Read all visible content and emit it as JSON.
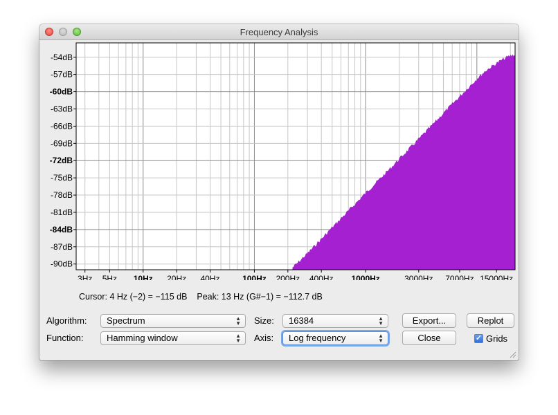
{
  "window": {
    "title": "Frequency Analysis"
  },
  "chart_data": {
    "type": "area",
    "title": "",
    "xlabel": "",
    "ylabel": "",
    "x_scale": "log",
    "xlim": [
      2.5,
      22050
    ],
    "ylim": [
      -91,
      -51.5
    ],
    "grid": true,
    "fill_color": "#a420d0",
    "y_ticks": [
      {
        "label": "-54dB",
        "value": -54,
        "major": false
      },
      {
        "label": "-57dB",
        "value": -57,
        "major": false
      },
      {
        "label": "-60dB",
        "value": -60,
        "major": true
      },
      {
        "label": "-63dB",
        "value": -63,
        "major": false
      },
      {
        "label": "-66dB",
        "value": -66,
        "major": false
      },
      {
        "label": "-69dB",
        "value": -69,
        "major": false
      },
      {
        "label": "-72dB",
        "value": -72,
        "major": true
      },
      {
        "label": "-75dB",
        "value": -75,
        "major": false
      },
      {
        "label": "-78dB",
        "value": -78,
        "major": false
      },
      {
        "label": "-81dB",
        "value": -81,
        "major": false
      },
      {
        "label": "-84dB",
        "value": -84,
        "major": true
      },
      {
        "label": "-87dB",
        "value": -87,
        "major": false
      },
      {
        "label": "-90dB",
        "value": -90,
        "major": false
      }
    ],
    "x_ticks": [
      {
        "label": "3Hz",
        "value": 3,
        "major": false
      },
      {
        "label": "5Hz",
        "value": 5,
        "major": false
      },
      {
        "label": "10Hz",
        "value": 10,
        "major": true
      },
      {
        "label": "20Hz",
        "value": 20,
        "major": false
      },
      {
        "label": "40Hz",
        "value": 40,
        "major": false
      },
      {
        "label": "100Hz",
        "value": 100,
        "major": true
      },
      {
        "label": "200Hz",
        "value": 200,
        "major": false
      },
      {
        "label": "400Hz",
        "value": 400,
        "major": false
      },
      {
        "label": "1000Hz",
        "value": 1000,
        "major": true
      },
      {
        "label": "3000Hz",
        "value": 3000,
        "major": false
      },
      {
        "label": "7000Hz",
        "value": 7000,
        "major": false
      },
      {
        "label": "15000Hz",
        "value": 15000,
        "major": false
      }
    ],
    "series": [
      {
        "x": [
          220,
          250,
          300,
          400,
          500,
          700,
          1000,
          1500,
          2000,
          3000,
          4000,
          5000,
          7000,
          10000,
          12000,
          15000,
          18000,
          20000,
          22050
        ],
        "y": [
          -90.5,
          -89.5,
          -88.0,
          -85.5,
          -83.5,
          -80.6,
          -77.5,
          -74.1,
          -71.6,
          -68.1,
          -65.6,
          -63.6,
          -60.7,
          -57.6,
          -56.2,
          -54.9,
          -54.0,
          -53.6,
          -53.4
        ]
      }
    ]
  },
  "status": {
    "cursor": "Cursor: 4 Hz (−2) = −115 dB",
    "peak": "Peak: 13 Hz (G#−1) = −112.7 dB"
  },
  "controls": {
    "algorithm_label": "Algorithm:",
    "algorithm_value": "Spectrum",
    "size_label": "Size:",
    "size_value": "16384",
    "function_label": "Function:",
    "function_value": "Hamming window",
    "axis_label": "Axis:",
    "axis_value": "Log frequency",
    "export_label": "Export...",
    "replot_label": "Replot",
    "close_label": "Close",
    "grids_label": "Grids",
    "grids_checked": true
  }
}
